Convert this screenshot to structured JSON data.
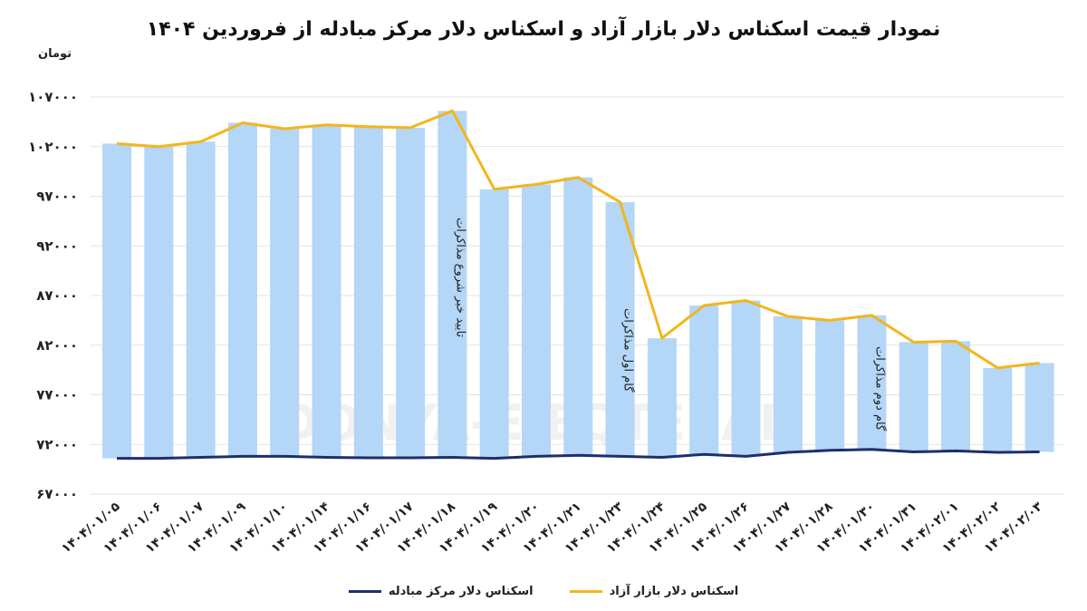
{
  "chart_data": {
    "type": "bar",
    "title": "نمودار قیمت اسکناس دلار بازار آزاد و اسکناس دلار مرکز مبادله از فروردین ۱۴۰۴",
    "ylabel": "تومان",
    "ylim": [
      67000,
      107000
    ],
    "yticks": [
      "۶۷۰۰۰",
      "۷۲۰۰۰",
      "۷۷۰۰۰",
      "۸۲۰۰۰",
      "۸۷۰۰۰",
      "۹۲۰۰۰",
      "۹۷۰۰۰",
      "۱۰۲۰۰۰",
      "۱۰۷۰۰۰"
    ],
    "ytick_values": [
      67000,
      72000,
      77000,
      82000,
      87000,
      92000,
      97000,
      102000,
      107000
    ],
    "grid": true,
    "legend": "bottom",
    "categories": [
      "۱۴۰۴/۰۱/۰۵",
      "۱۴۰۴/۰۱/۰۶",
      "۱۴۰۴/۰۱/۰۷",
      "۱۴۰۴/۰۱/۰۹",
      "۱۴۰۴/۰۱/۱۰",
      "۱۴۰۴/۰۱/۱۴",
      "۱۴۰۴/۰۱/۱۶",
      "۱۴۰۴/۰۱/۱۷",
      "۱۴۰۴/۰۱/۱۸",
      "۱۴۰۴/۰۱/۱۹",
      "۱۴۰۴/۰۱/۲۰",
      "۱۴۰۴/۰۱/۲۱",
      "۱۴۰۴/۰۱/۲۳",
      "۱۴۰۴/۰۱/۲۴",
      "۱۴۰۴/۰۱/۲۵",
      "۱۴۰۴/۰۱/۲۶",
      "۱۴۰۴/۰۱/۲۷",
      "۱۴۰۴/۰۱/۲۸",
      "۱۴۰۴/۰۱/۳۰",
      "۱۴۰۴/۰۱/۳۱",
      "۱۴۰۴/۰۲/۰۱",
      "۱۴۰۴/۰۲/۰۲",
      "۱۴۰۴/۰۲/۰۳"
    ],
    "series": [
      {
        "name": "اسکناس دلار بازار آزاد",
        "color": "#f2b61c",
        "bar_color": "#b4d6f7",
        "values": [
          102300,
          102000,
          102500,
          104400,
          103800,
          104200,
          104000,
          103900,
          105600,
          97700,
          98200,
          98900,
          96400,
          82700,
          86000,
          86500,
          84900,
          84500,
          85000,
          82300,
          82400,
          79700,
          80200
        ]
      },
      {
        "name": "اسکناس دلار مرکز مبادله",
        "color": "#1e2f6e",
        "values": [
          70600,
          70600,
          70700,
          70800,
          70800,
          70700,
          70650,
          70650,
          70700,
          70600,
          70800,
          70900,
          70800,
          70700,
          71000,
          70800,
          71200,
          71400,
          71500,
          71250,
          71350,
          71200,
          71250
        ]
      }
    ],
    "annotations": [
      {
        "text": "تایید خبر شروع مذاکرات",
        "category_index": 8
      },
      {
        "text": "گام اول مذاکرات",
        "category_index": 12
      },
      {
        "text": "گام دوم مذاکرات",
        "category_index": 18
      }
    ],
    "watermark": "DONYA-E-EQTESAD"
  }
}
